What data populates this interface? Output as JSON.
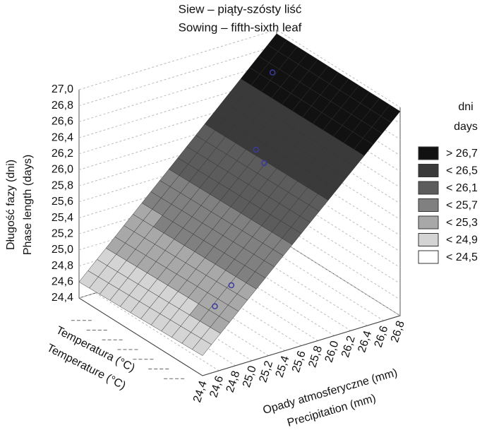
{
  "chart_data": {
    "type": "surface3d",
    "title": [
      "Siew – piąty-szósty liść",
      "Sowing – fifth-sixth leaf"
    ],
    "z_label": [
      "Długość fazy (dni)",
      "Phase length (days)"
    ],
    "x_label": [
      "Opady atmosferyczne (mm)",
      "Precipitation (mm)"
    ],
    "y_label": [
      "Temperatura (°C)",
      "Temperature (°C)"
    ],
    "zlim": [
      24.4,
      27.0
    ],
    "zticks": [
      {
        "value": 24.4,
        "label": "24,4"
      },
      {
        "value": 24.6,
        "label": "24,6"
      },
      {
        "value": 24.8,
        "label": "24,8"
      },
      {
        "value": 25.0,
        "label": "25,0"
      },
      {
        "value": 25.2,
        "label": "25,2"
      },
      {
        "value": 25.4,
        "label": "25,4"
      },
      {
        "value": 25.6,
        "label": "25,6"
      },
      {
        "value": 25.8,
        "label": "25,8"
      },
      {
        "value": 26.0,
        "label": "26,0"
      },
      {
        "value": 26.2,
        "label": "26,2"
      },
      {
        "value": 26.4,
        "label": "26,4"
      },
      {
        "value": 26.6,
        "label": "26,6"
      },
      {
        "value": 26.8,
        "label": "26,8"
      },
      {
        "value": 27.0,
        "label": "27,0"
      }
    ],
    "xlim": [
      24.4,
      26.8
    ],
    "xticks": [
      {
        "value": 24.4,
        "label": "24,4"
      },
      {
        "value": 24.6,
        "label": "24,6"
      },
      {
        "value": 24.8,
        "label": "24,8"
      },
      {
        "value": 25.0,
        "label": "25,0"
      },
      {
        "value": 25.2,
        "label": "25,2"
      },
      {
        "value": 25.4,
        "label": "25,4"
      },
      {
        "value": 25.6,
        "label": "25,6"
      },
      {
        "value": 25.8,
        "label": "25,8"
      },
      {
        "value": 26.0,
        "label": "26,0"
      },
      {
        "value": 26.2,
        "label": "26,2"
      },
      {
        "value": 26.4,
        "label": "26,4"
      },
      {
        "value": 26.6,
        "label": "26,6"
      },
      {
        "value": 26.8,
        "label": "26,8"
      }
    ],
    "surface": {
      "z": [
        [
          24.6,
          26.95
        ],
        [
          24.65,
          26.95
        ]
      ]
    },
    "points": {
      "x": [
        26.0,
        25.8,
        25.9,
        25.5,
        25.3
      ],
      "values": [
        27.2,
        26.3,
        26.1,
        24.7,
        24.5
      ],
      "color": "#3a3aa0"
    },
    "legend": {
      "title": [
        "dni",
        "days"
      ],
      "entries": [
        {
          "label": "> 26,7",
          "value": 26.7,
          "color": "#111111"
        },
        {
          "label": "< 26,5",
          "value": 26.5,
          "color": "#3a3a3a"
        },
        {
          "label": "< 26,1",
          "value": 26.1,
          "color": "#5c5c5c"
        },
        {
          "label": "< 25,7",
          "value": 25.7,
          "color": "#808080"
        },
        {
          "label": "< 25,3",
          "value": 25.3,
          "color": "#a8a8a8"
        },
        {
          "label": "< 24,9",
          "value": 24.9,
          "color": "#d4d4d4"
        },
        {
          "label": "< 24,5",
          "value": 24.5,
          "color": "#ffffff"
        }
      ]
    }
  }
}
